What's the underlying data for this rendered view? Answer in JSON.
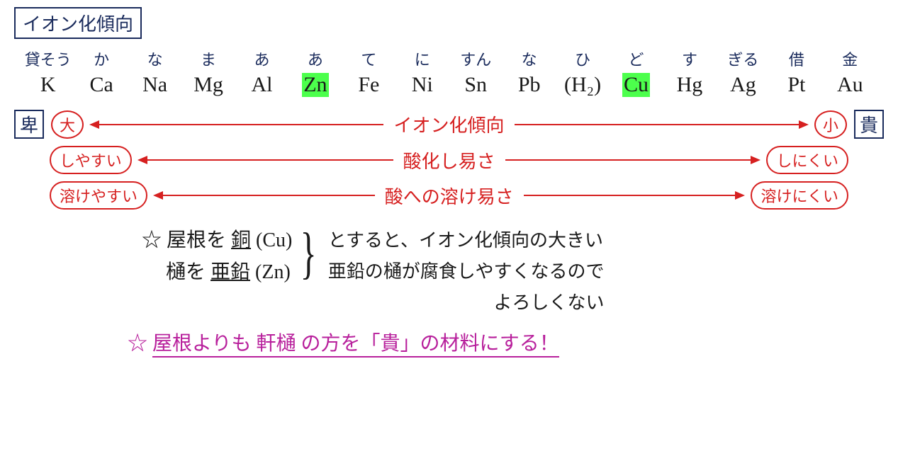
{
  "title": "イオン化傾向",
  "colors": {
    "ink": "#1a1a1a",
    "navy": "#1a2b5c",
    "red": "#d62020",
    "magenta": "#b8209c",
    "highlight": "#4cff4c",
    "bg": "#ffffff"
  },
  "mnemonics": [
    "貸そう",
    "か",
    "な",
    "ま",
    "あ",
    "あ",
    "て",
    "に",
    "すん",
    "な",
    "ひ",
    "ど",
    "す",
    "ぎる",
    "借",
    "金"
  ],
  "elements": [
    {
      "sym": "K",
      "hl": false
    },
    {
      "sym": "Ca",
      "hl": false
    },
    {
      "sym": "Na",
      "hl": false
    },
    {
      "sym": "Mg",
      "hl": false
    },
    {
      "sym": "Al",
      "hl": false
    },
    {
      "sym": "Zn",
      "hl": true
    },
    {
      "sym": "Fe",
      "hl": false
    },
    {
      "sym": "Ni",
      "hl": false
    },
    {
      "sym": "Sn",
      "hl": false
    },
    {
      "sym": "Pb",
      "hl": false
    },
    {
      "sym": "(H₂)",
      "hl": false
    },
    {
      "sym": "Cu",
      "hl": true
    },
    {
      "sym": "Hg",
      "hl": false
    },
    {
      "sym": "Ag",
      "hl": false
    },
    {
      "sym": "Pt",
      "hl": false
    },
    {
      "sym": "Au",
      "hl": false
    }
  ],
  "leftBox": "卑",
  "rightBox": "貴",
  "rows": [
    {
      "left": "大",
      "center": "イオン化傾向",
      "right": "小"
    },
    {
      "left": "しやすい",
      "center": "酸化し易さ",
      "right": "しにくい"
    },
    {
      "left": "溶けやすい",
      "center": "酸への溶け易さ",
      "right": "溶けにくい"
    }
  ],
  "note": {
    "star": "☆",
    "l1a": "屋根を ",
    "l1b": "銅",
    "l1c": " (Cu)",
    "l2a": "樋を ",
    "l2b": "亜鉛",
    "l2c": " (Zn)",
    "r1": "とすると、イオン化傾向の大きい",
    "r2": "亜鉛の樋が腐食しやすくなるので",
    "r3": "よろしくない"
  },
  "conclusion": {
    "star": "☆",
    "text": "屋根よりも 軒樋 の方を「貴」の材料にする！"
  }
}
